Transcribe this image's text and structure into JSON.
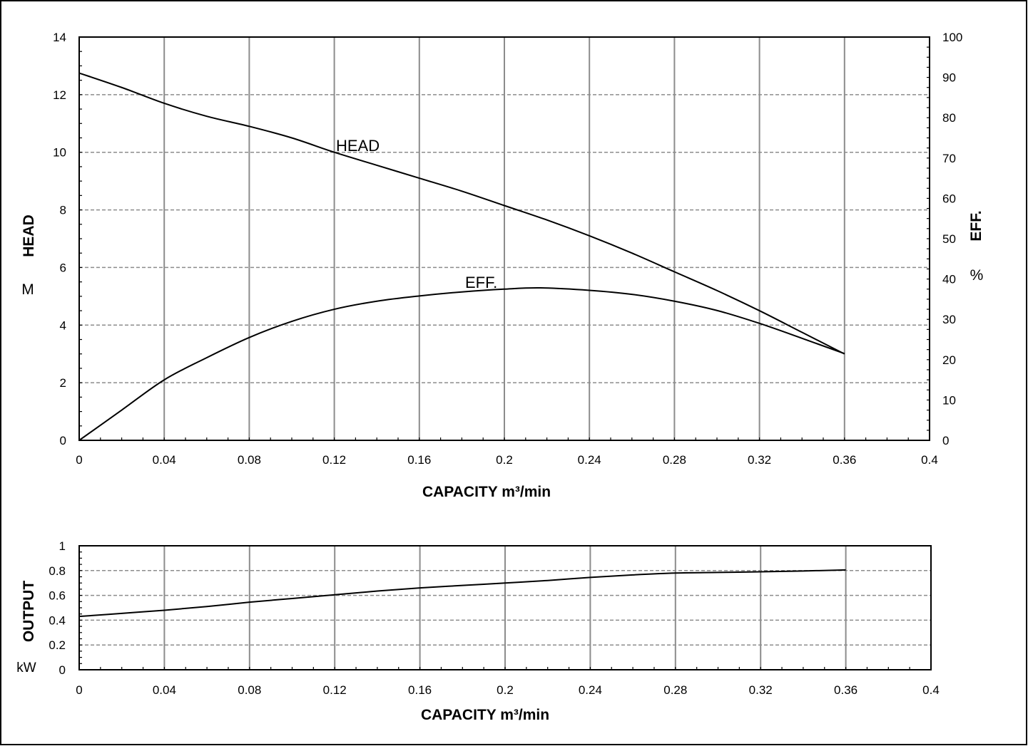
{
  "chart_data": [
    {
      "type": "line",
      "xlabel": "CAPACITY m³/min",
      "ylabel_left": "HEAD",
      "ylabel_left_unit": "M",
      "ylabel_right": "EFF.",
      "ylabel_right_unit": "%",
      "xlim": [
        0,
        0.4
      ],
      "ylim_left": [
        0,
        14
      ],
      "ylim_right": [
        0,
        100
      ],
      "x_ticks": [
        "0",
        "0.04",
        "0.08",
        "0.12",
        "0.16",
        "0.2",
        "0.24",
        "0.28",
        "0.32",
        "0.36",
        "0.4"
      ],
      "y_left_ticks": [
        "0",
        "2",
        "4",
        "6",
        "8",
        "10",
        "12",
        "14"
      ],
      "y_right_ticks": [
        "0",
        "10",
        "20",
        "30",
        "40",
        "50",
        "60",
        "70",
        "80",
        "90",
        "100"
      ],
      "grid": true,
      "series": [
        {
          "name": "HEAD",
          "axis": "left",
          "x": [
            0,
            0.02,
            0.04,
            0.06,
            0.08,
            0.1,
            0.12,
            0.14,
            0.16,
            0.18,
            0.2,
            0.22,
            0.24,
            0.26,
            0.28,
            0.3,
            0.32,
            0.34,
            0.36
          ],
          "values": [
            12.75,
            12.25,
            11.7,
            11.25,
            10.9,
            10.5,
            10.0,
            9.55,
            9.1,
            8.65,
            8.15,
            7.65,
            7.1,
            6.5,
            5.85,
            5.2,
            4.5,
            3.75,
            3.0
          ]
        },
        {
          "name": "EFF.",
          "axis": "right",
          "x": [
            0,
            0.02,
            0.04,
            0.06,
            0.08,
            0.1,
            0.12,
            0.14,
            0.16,
            0.18,
            0.2,
            0.217,
            0.24,
            0.26,
            0.28,
            0.3,
            0.32,
            0.34,
            0.36
          ],
          "values": [
            0,
            7.5,
            15,
            20.5,
            25.5,
            29.5,
            32.5,
            34.5,
            35.8,
            36.8,
            37.5,
            37.8,
            37.2,
            36.2,
            34.5,
            32.2,
            29.0,
            25.3,
            21.5
          ]
        }
      ]
    },
    {
      "type": "line",
      "xlabel": "CAPACITY m³/min",
      "ylabel": "OUTPUT",
      "ylabel_unit": "kW",
      "xlim": [
        0,
        0.4
      ],
      "ylim": [
        0,
        1
      ],
      "x_ticks": [
        "0",
        "0.04",
        "0.08",
        "0.12",
        "0.16",
        "0.2",
        "0.24",
        "0.28",
        "0.32",
        "0.36",
        "0.4"
      ],
      "y_ticks": [
        "0",
        "0.2",
        "0.4",
        "0.6",
        "0.8",
        "1"
      ],
      "grid": true,
      "series": [
        {
          "name": "OUTPUT",
          "x": [
            0,
            0.02,
            0.04,
            0.06,
            0.08,
            0.1,
            0.12,
            0.14,
            0.16,
            0.18,
            0.2,
            0.22,
            0.24,
            0.26,
            0.28,
            0.3,
            0.32,
            0.34,
            0.36
          ],
          "values": [
            0.43,
            0.455,
            0.48,
            0.51,
            0.545,
            0.575,
            0.605,
            0.635,
            0.66,
            0.68,
            0.7,
            0.72,
            0.745,
            0.765,
            0.78,
            0.785,
            0.79,
            0.797,
            0.805
          ]
        }
      ]
    }
  ]
}
